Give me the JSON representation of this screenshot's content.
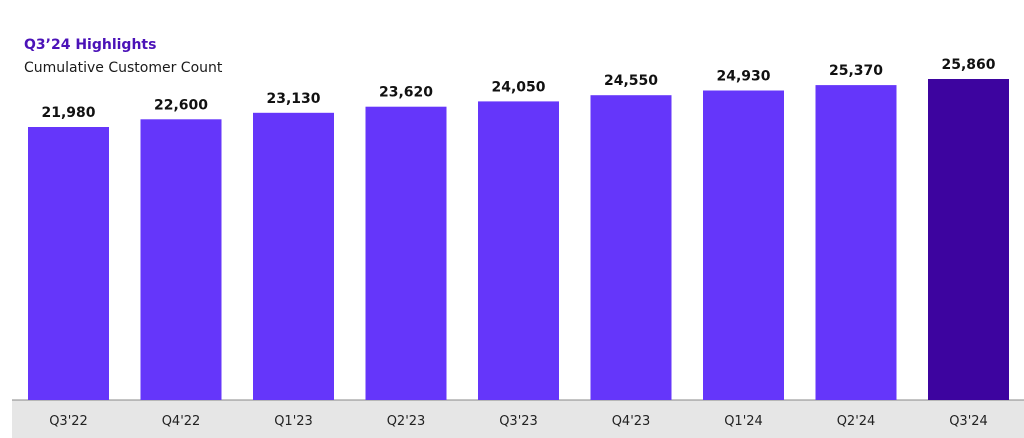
{
  "header": {
    "title": "Q3’24 Highlights",
    "subtitle": "Cumulative Customer Count"
  },
  "colors": {
    "bar": "#6536fa",
    "bar_highlight": "#3d049f",
    "axis_band": "#e6e6e6",
    "axis_line": "#888888"
  },
  "chart_data": {
    "type": "bar",
    "categories": [
      "Q3'22",
      "Q4'22",
      "Q1'23",
      "Q2'23",
      "Q3'23",
      "Q4'23",
      "Q1'24",
      "Q2'24",
      "Q3'24"
    ],
    "values": [
      21980,
      22600,
      23130,
      23620,
      24050,
      24550,
      24930,
      25370,
      25860
    ],
    "value_labels": [
      "21,980",
      "22,600",
      "23,130",
      "23,620",
      "24,050",
      "24,550",
      "24,930",
      "25,370",
      "25,860"
    ],
    "highlight_index": 8,
    "title": "",
    "xlabel": "",
    "ylabel": "",
    "grid": false,
    "legend": "none"
  }
}
